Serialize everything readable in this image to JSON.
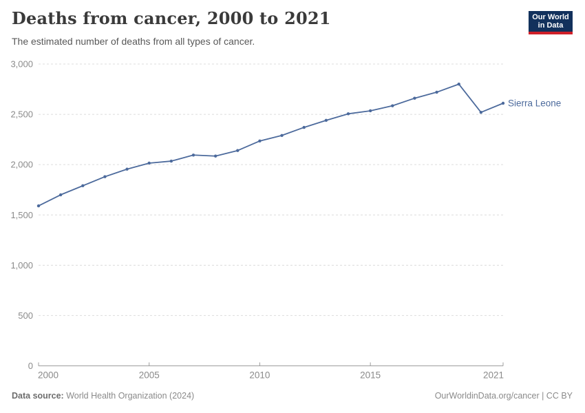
{
  "header": {
    "title": "Deaths from cancer, 2000 to 2021",
    "subtitle": "The estimated number of deaths from all types of cancer.",
    "logo": {
      "line1": "Our World",
      "line2": "in Data"
    }
  },
  "chart_data": {
    "type": "line",
    "title": "Deaths from cancer, 2000 to 2021",
    "xlabel": "",
    "ylabel": "",
    "x": [
      2000,
      2001,
      2002,
      2003,
      2004,
      2005,
      2006,
      2007,
      2008,
      2009,
      2010,
      2011,
      2012,
      2013,
      2014,
      2015,
      2016,
      2017,
      2018,
      2019,
      2020,
      2021
    ],
    "series": [
      {
        "name": "Sierra Leone",
        "color": "#4c6a9c",
        "values": [
          1590,
          1700,
          1790,
          1880,
          1955,
          2015,
          2035,
          2095,
          2085,
          2140,
          2235,
          2290,
          2370,
          2440,
          2505,
          2535,
          2585,
          2660,
          2720,
          2800,
          2520,
          2610
        ]
      }
    ],
    "xlim": [
      2000,
      2021
    ],
    "ylim": [
      0,
      3000
    ],
    "xticks": [
      2000,
      2005,
      2010,
      2015,
      2021
    ],
    "yticks": [
      0,
      500,
      1000,
      1500,
      2000,
      2500,
      3000
    ],
    "ytick_labels": [
      "0",
      "500",
      "1,000",
      "1,500",
      "2,000",
      "2,500",
      "3,000"
    ],
    "grid": "horizontal-dashed",
    "legend_position": "end-of-line-label",
    "colors": {
      "grid": "#dcdcdc",
      "axis": "#9c9c9c",
      "tick_label": "#8a8a8a"
    }
  },
  "footer": {
    "source_label": "Data source:",
    "source": "World Health Organization (2024)",
    "credit": "OurWorldinData.org/cancer | CC BY"
  }
}
